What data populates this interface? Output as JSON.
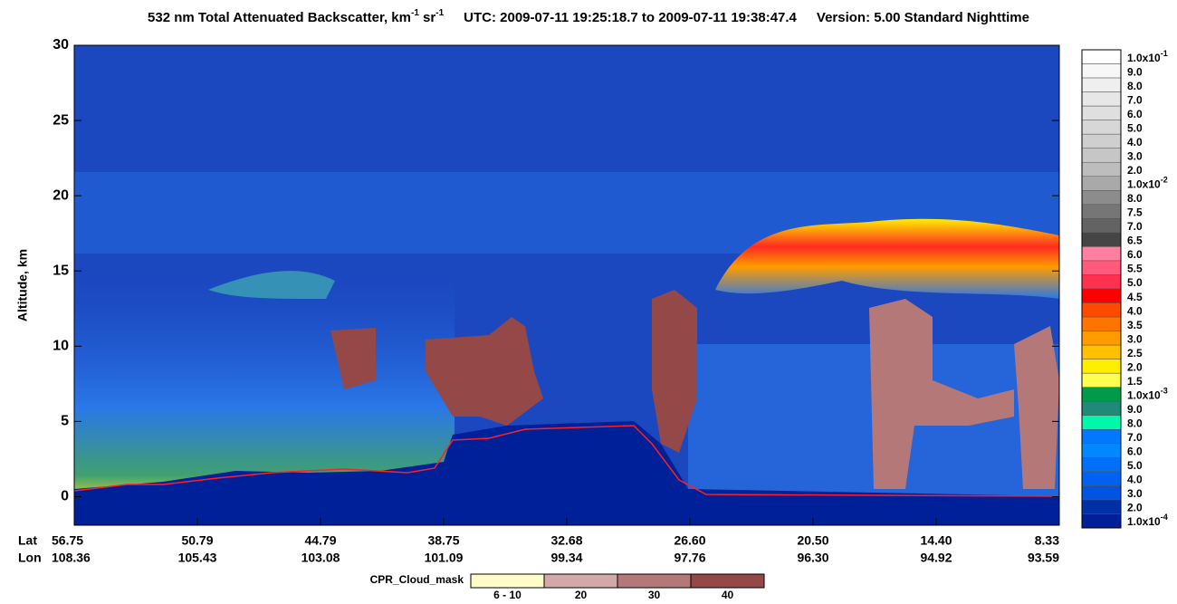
{
  "chart_data": {
    "type": "curtain",
    "title": [
      "532 nm Total Attenuated Backscatter, km",
      "-1",
      " sr",
      "-1",
      "UTC:  2009-07-11 19:25:18.7  to  2009-07-11 19:38:47.4",
      "Version: 5.00  Standard  Nighttime"
    ],
    "y_label": "Altitude, km",
    "ylim": [
      -1.9,
      30
    ],
    "yticks": [
      0,
      5,
      10,
      15,
      20,
      25,
      30
    ],
    "x_rows": [
      {
        "name": "Lat",
        "labels": [
          "56.75",
          "50.79",
          "44.79",
          "38.75",
          "32.68",
          "26.60",
          "20.50",
          "14.40",
          "8.33"
        ]
      },
      {
        "name": "Lon",
        "labels": [
          "108.36",
          "105.43",
          "103.08",
          "101.09",
          "99.34",
          "97.76",
          "96.30",
          "94.92",
          "93.59"
        ]
      }
    ],
    "colorbar": [
      {
        "label": "1.0x10",
        "sup": "-1",
        "color": "#ffffff"
      },
      {
        "label": "9.0",
        "color": "#f7f7f7"
      },
      {
        "label": "8.0",
        "color": "#efefef"
      },
      {
        "label": "7.0",
        "color": "#e7e7e7"
      },
      {
        "label": "6.0",
        "color": "#dfdfdf"
      },
      {
        "label": "5.0",
        "color": "#d7d7d7"
      },
      {
        "label": "4.0",
        "color": "#cfcfcf"
      },
      {
        "label": "3.0",
        "color": "#c6c6c6"
      },
      {
        "label": "2.0",
        "color": "#bdbdbd"
      },
      {
        "label": "1.0x10",
        "sup": "-2",
        "color": "#a9a9a9"
      },
      {
        "label": "8.0",
        "color": "#8c8c8c"
      },
      {
        "label": "7.5",
        "color": "#767676"
      },
      {
        "label": "7.0",
        "color": "#636363"
      },
      {
        "label": "6.5",
        "color": "#454545"
      },
      {
        "label": "6.0",
        "color": "#ff7fa0"
      },
      {
        "label": "5.5",
        "color": "#ff5a7a"
      },
      {
        "label": "5.0",
        "color": "#ff3050"
      },
      {
        "label": "4.5",
        "color": "#ff0000"
      },
      {
        "label": "4.0",
        "color": "#ff4a00"
      },
      {
        "label": "3.5",
        "color": "#ff7400"
      },
      {
        "label": "3.0",
        "color": "#ff9c00"
      },
      {
        "label": "2.5",
        "color": "#ffc000"
      },
      {
        "label": "2.0",
        "color": "#ffee00"
      },
      {
        "label": "1.5",
        "color": "#ffff50"
      },
      {
        "label": "1.0x10",
        "sup": "-3",
        "color": "#009a48"
      },
      {
        "label": "9.0",
        "color": "#208a78"
      },
      {
        "label": "8.0",
        "color": "#00f8a8"
      },
      {
        "label": "7.0",
        "color": "#0078ff"
      },
      {
        "label": "6.0",
        "color": "#0088ff"
      },
      {
        "label": "5.0",
        "color": "#0070f8"
      },
      {
        "label": "4.0",
        "color": "#0062f0"
      },
      {
        "label": "3.0",
        "color": "#0055e0"
      },
      {
        "label": "2.0",
        "color": "#0030a8"
      },
      {
        "label": "1.0x10",
        "sup": "-4",
        "color": "#00209a"
      }
    ],
    "mask_legend": {
      "title": "CPR_Cloud_mask",
      "items": [
        {
          "label": "6 - 10",
          "color": "#fffcc8"
        },
        {
          "label": "20",
          "color": "#d4a8a8"
        },
        {
          "label": "30",
          "color": "#b57878"
        },
        {
          "label": "40",
          "color": "#944848"
        }
      ]
    }
  }
}
